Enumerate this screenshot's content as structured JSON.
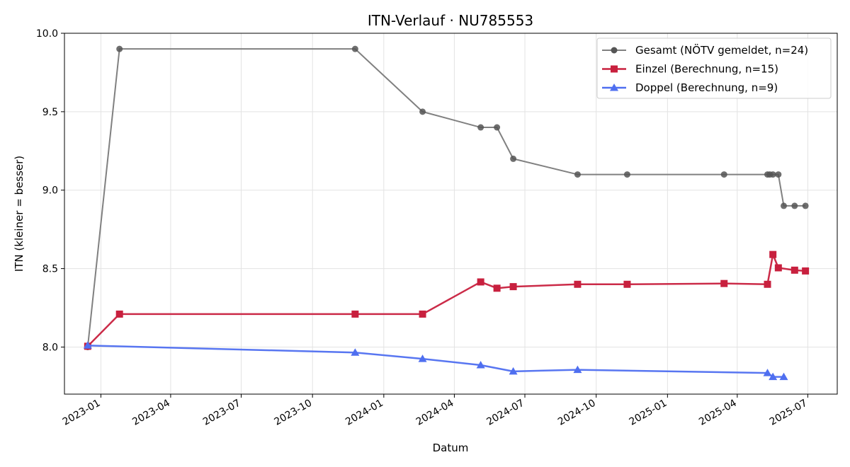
{
  "chart_data": {
    "type": "line",
    "title": "ITN-Verlauf · NU785553",
    "xlabel": "Datum",
    "ylabel": "ITN  (kleiner = besser)",
    "xlim": [
      "2022-11-15",
      "2025-08-08"
    ],
    "ylim": [
      7.7,
      10.0
    ],
    "x_ticks": [
      "2023-01",
      "2023-04",
      "2023-07",
      "2023-10",
      "2024-01",
      "2024-04",
      "2024-07",
      "2024-10",
      "2025-01",
      "2025-04",
      "2025-07"
    ],
    "y_ticks": [
      "8.0",
      "8.5",
      "9.0",
      "9.5",
      "10.0"
    ],
    "grid": true,
    "legend_position": "top-right",
    "series": [
      {
        "name": "Gesamt (NÖTV gemeldet, n=24)",
        "color": "#808080",
        "marker": "circle",
        "points": [
          [
            "2022-12-15",
            8.0
          ],
          [
            "2023-01-25",
            9.9
          ],
          [
            "2023-11-25",
            9.9
          ],
          [
            "2024-02-20",
            9.5
          ],
          [
            "2024-05-05",
            9.4
          ],
          [
            "2024-05-26",
            9.4
          ],
          [
            "2024-06-16",
            9.2
          ],
          [
            "2024-09-07",
            9.1
          ],
          [
            "2024-11-10",
            9.1
          ],
          [
            "2025-03-15",
            9.1
          ],
          [
            "2025-05-10",
            9.1
          ],
          [
            "2025-05-13",
            9.1
          ],
          [
            "2025-05-17",
            9.1
          ],
          [
            "2025-05-24",
            9.1
          ],
          [
            "2025-05-31",
            8.9
          ],
          [
            "2025-06-14",
            8.9
          ],
          [
            "2025-06-28",
            8.9
          ]
        ]
      },
      {
        "name": "Einzel (Berechnung, n=15)",
        "color": "#c8203e",
        "marker": "square",
        "points": [
          [
            "2022-12-15",
            8.005
          ],
          [
            "2023-01-25",
            8.21
          ],
          [
            "2023-11-25",
            8.21
          ],
          [
            "2024-02-20",
            8.21
          ],
          [
            "2024-05-05",
            8.415
          ],
          [
            "2024-05-26",
            8.375
          ],
          [
            "2024-06-16",
            8.385
          ],
          [
            "2024-09-07",
            8.4
          ],
          [
            "2024-11-10",
            8.4
          ],
          [
            "2025-03-15",
            8.405
          ],
          [
            "2025-05-10",
            8.4
          ],
          [
            "2025-05-17",
            8.59
          ],
          [
            "2025-05-24",
            8.505
          ],
          [
            "2025-06-14",
            8.49
          ],
          [
            "2025-06-28",
            8.485
          ]
        ]
      },
      {
        "name": "Doppel (Berechnung, n=9)",
        "color": "#4f6ff0",
        "marker": "triangle",
        "points": [
          [
            "2022-12-15",
            8.01
          ],
          [
            "2023-11-25",
            7.965
          ],
          [
            "2024-02-20",
            7.925
          ],
          [
            "2024-05-05",
            7.885
          ],
          [
            "2024-06-16",
            7.845
          ],
          [
            "2024-09-07",
            7.855
          ],
          [
            "2025-05-10",
            7.835
          ],
          [
            "2025-05-17",
            7.81
          ],
          [
            "2025-05-31",
            7.81
          ]
        ]
      }
    ]
  }
}
